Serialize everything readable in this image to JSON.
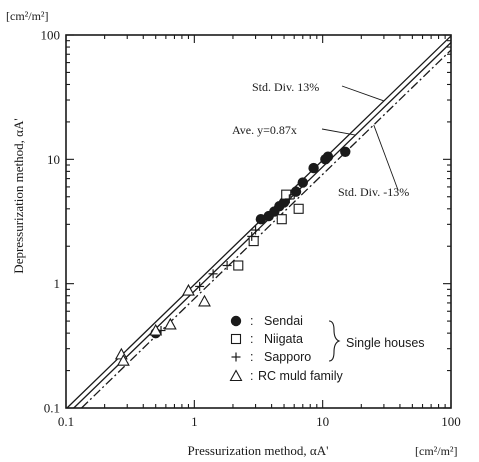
{
  "chart_data": {
    "type": "scatter",
    "xlabel": "Pressurization method, αA'",
    "ylabel": "Depressurization method, αA'",
    "x_unit": "[cm²/m²]",
    "y_unit": "[cm²/m²]",
    "xscale": "log",
    "yscale": "log",
    "xlim": [
      0.1,
      100
    ],
    "ylim": [
      0.1,
      100
    ],
    "x_ticks": [
      "0.1",
      "1",
      "10",
      "100"
    ],
    "y_ticks": [
      "0.1",
      "1",
      "10",
      "100"
    ],
    "grid": false,
    "legend_position": "bottom-right inside",
    "legend_group_label": "Single houses",
    "series": [
      {
        "name": "Sendai",
        "marker": "filled-circle",
        "points": [
          [
            0.5,
            0.4
          ],
          [
            3.3,
            3.3
          ],
          [
            3.8,
            3.5
          ],
          [
            4.2,
            3.8
          ],
          [
            4.6,
            4.2
          ],
          [
            5.0,
            4.5
          ],
          [
            6.2,
            5.5
          ],
          [
            7.0,
            6.5
          ],
          [
            8.5,
            8.5
          ],
          [
            10.5,
            10.0
          ],
          [
            11.0,
            10.5
          ],
          [
            15.0,
            11.5
          ]
        ]
      },
      {
        "name": "Niigata",
        "marker": "open-square",
        "points": [
          [
            2.2,
            1.4
          ],
          [
            2.9,
            2.2
          ],
          [
            4.8,
            3.3
          ],
          [
            5.2,
            5.2
          ],
          [
            6.5,
            4.0
          ]
        ]
      },
      {
        "name": "Sapporo",
        "marker": "plus",
        "points": [
          [
            0.55,
            0.42
          ],
          [
            1.1,
            0.95
          ],
          [
            1.4,
            1.2
          ],
          [
            1.8,
            1.4
          ],
          [
            2.8,
            2.4
          ],
          [
            3.0,
            2.7
          ],
          [
            5.5,
            4.8
          ],
          [
            6.0,
            5.2
          ]
        ]
      },
      {
        "name": "RC muld family",
        "marker": "open-triangle",
        "points": [
          [
            0.27,
            0.27
          ],
          [
            0.28,
            0.24
          ],
          [
            0.5,
            0.42
          ],
          [
            0.65,
            0.47
          ],
          [
            0.9,
            0.88
          ],
          [
            1.2,
            0.72
          ]
        ]
      }
    ],
    "lines": [
      {
        "label": "Ave. y=0.87x",
        "slope": 0.87,
        "style": "solid"
      },
      {
        "label": "Std. Div. 13%",
        "slope": 0.983,
        "style": "solid"
      },
      {
        "label": "Std. Div. -13%",
        "slope": 0.757,
        "style": "dash-dot"
      }
    ]
  }
}
